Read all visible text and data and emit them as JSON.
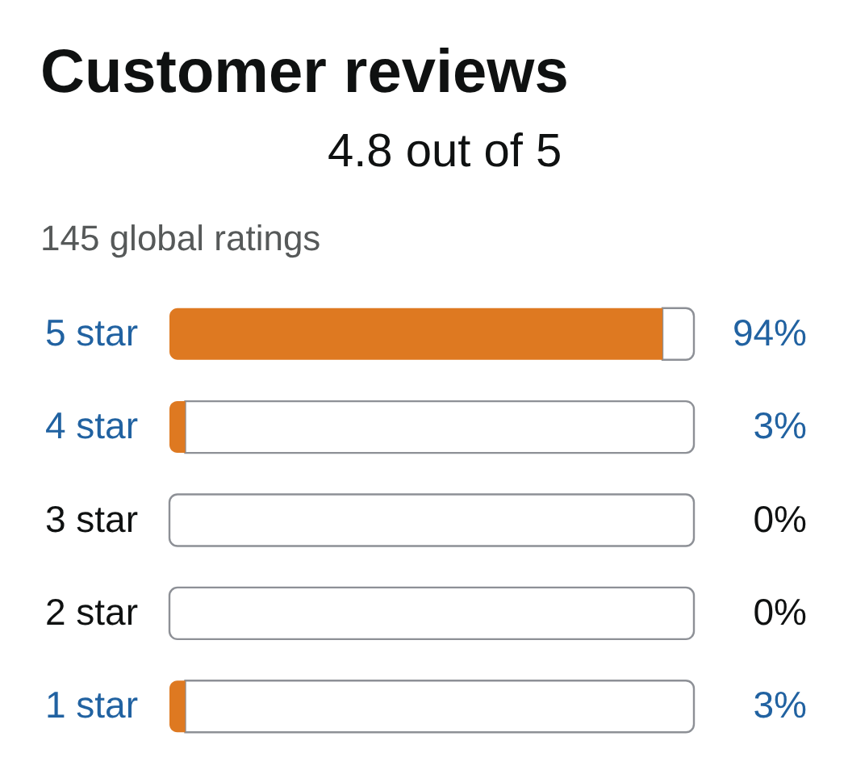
{
  "chart_data": {
    "type": "bar",
    "orientation": "horizontal",
    "stacked": true,
    "title": "Customer reviews",
    "subtitle": "4.8 out of 5",
    "annotations": [
      "145 global ratings"
    ],
    "categories": [
      "5 star",
      "4 star",
      "3 star",
      "2 star",
      "1 star"
    ],
    "series": [
      {
        "color": "#de7921",
        "values": [
          94,
          3,
          0,
          0,
          3
        ],
        "value_labels": [
          "94%",
          "3%",
          "0%",
          "0%",
          "3%"
        ]
      },
      {
        "color": "#ffffff",
        "values": [
          6,
          97,
          100,
          100,
          97
        ]
      }
    ],
    "xlim": [
      0,
      100
    ],
    "tick_labels": "y"
  }
}
